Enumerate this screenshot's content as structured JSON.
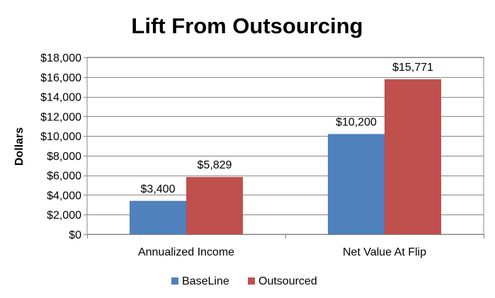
{
  "chart_data": {
    "type": "bar",
    "title": "Lift From Outsourcing",
    "xlabel": "",
    "ylabel": "Dollars",
    "categories": [
      "Annualized Income",
      "Net Value At Flip"
    ],
    "series": [
      {
        "name": "BaseLine",
        "color": "#4F81BD",
        "values": [
          3400,
          10200
        ],
        "labels": [
          "$3,400",
          "$10,200"
        ]
      },
      {
        "name": "Outsourced",
        "color": "#C0504D",
        "values": [
          5829,
          15771
        ],
        "labels": [
          "$5,829",
          "$15,771"
        ]
      }
    ],
    "ylim": [
      0,
      18000
    ],
    "yticks": [
      0,
      2000,
      4000,
      6000,
      8000,
      10000,
      12000,
      14000,
      16000,
      18000
    ],
    "ytick_labels": [
      "$0",
      "$2,000",
      "$4,000",
      "$6,000",
      "$8,000",
      "$10,000",
      "$12,000",
      "$14,000",
      "$16,000",
      "$18,000"
    ],
    "grid": true,
    "legend": "bottom"
  }
}
